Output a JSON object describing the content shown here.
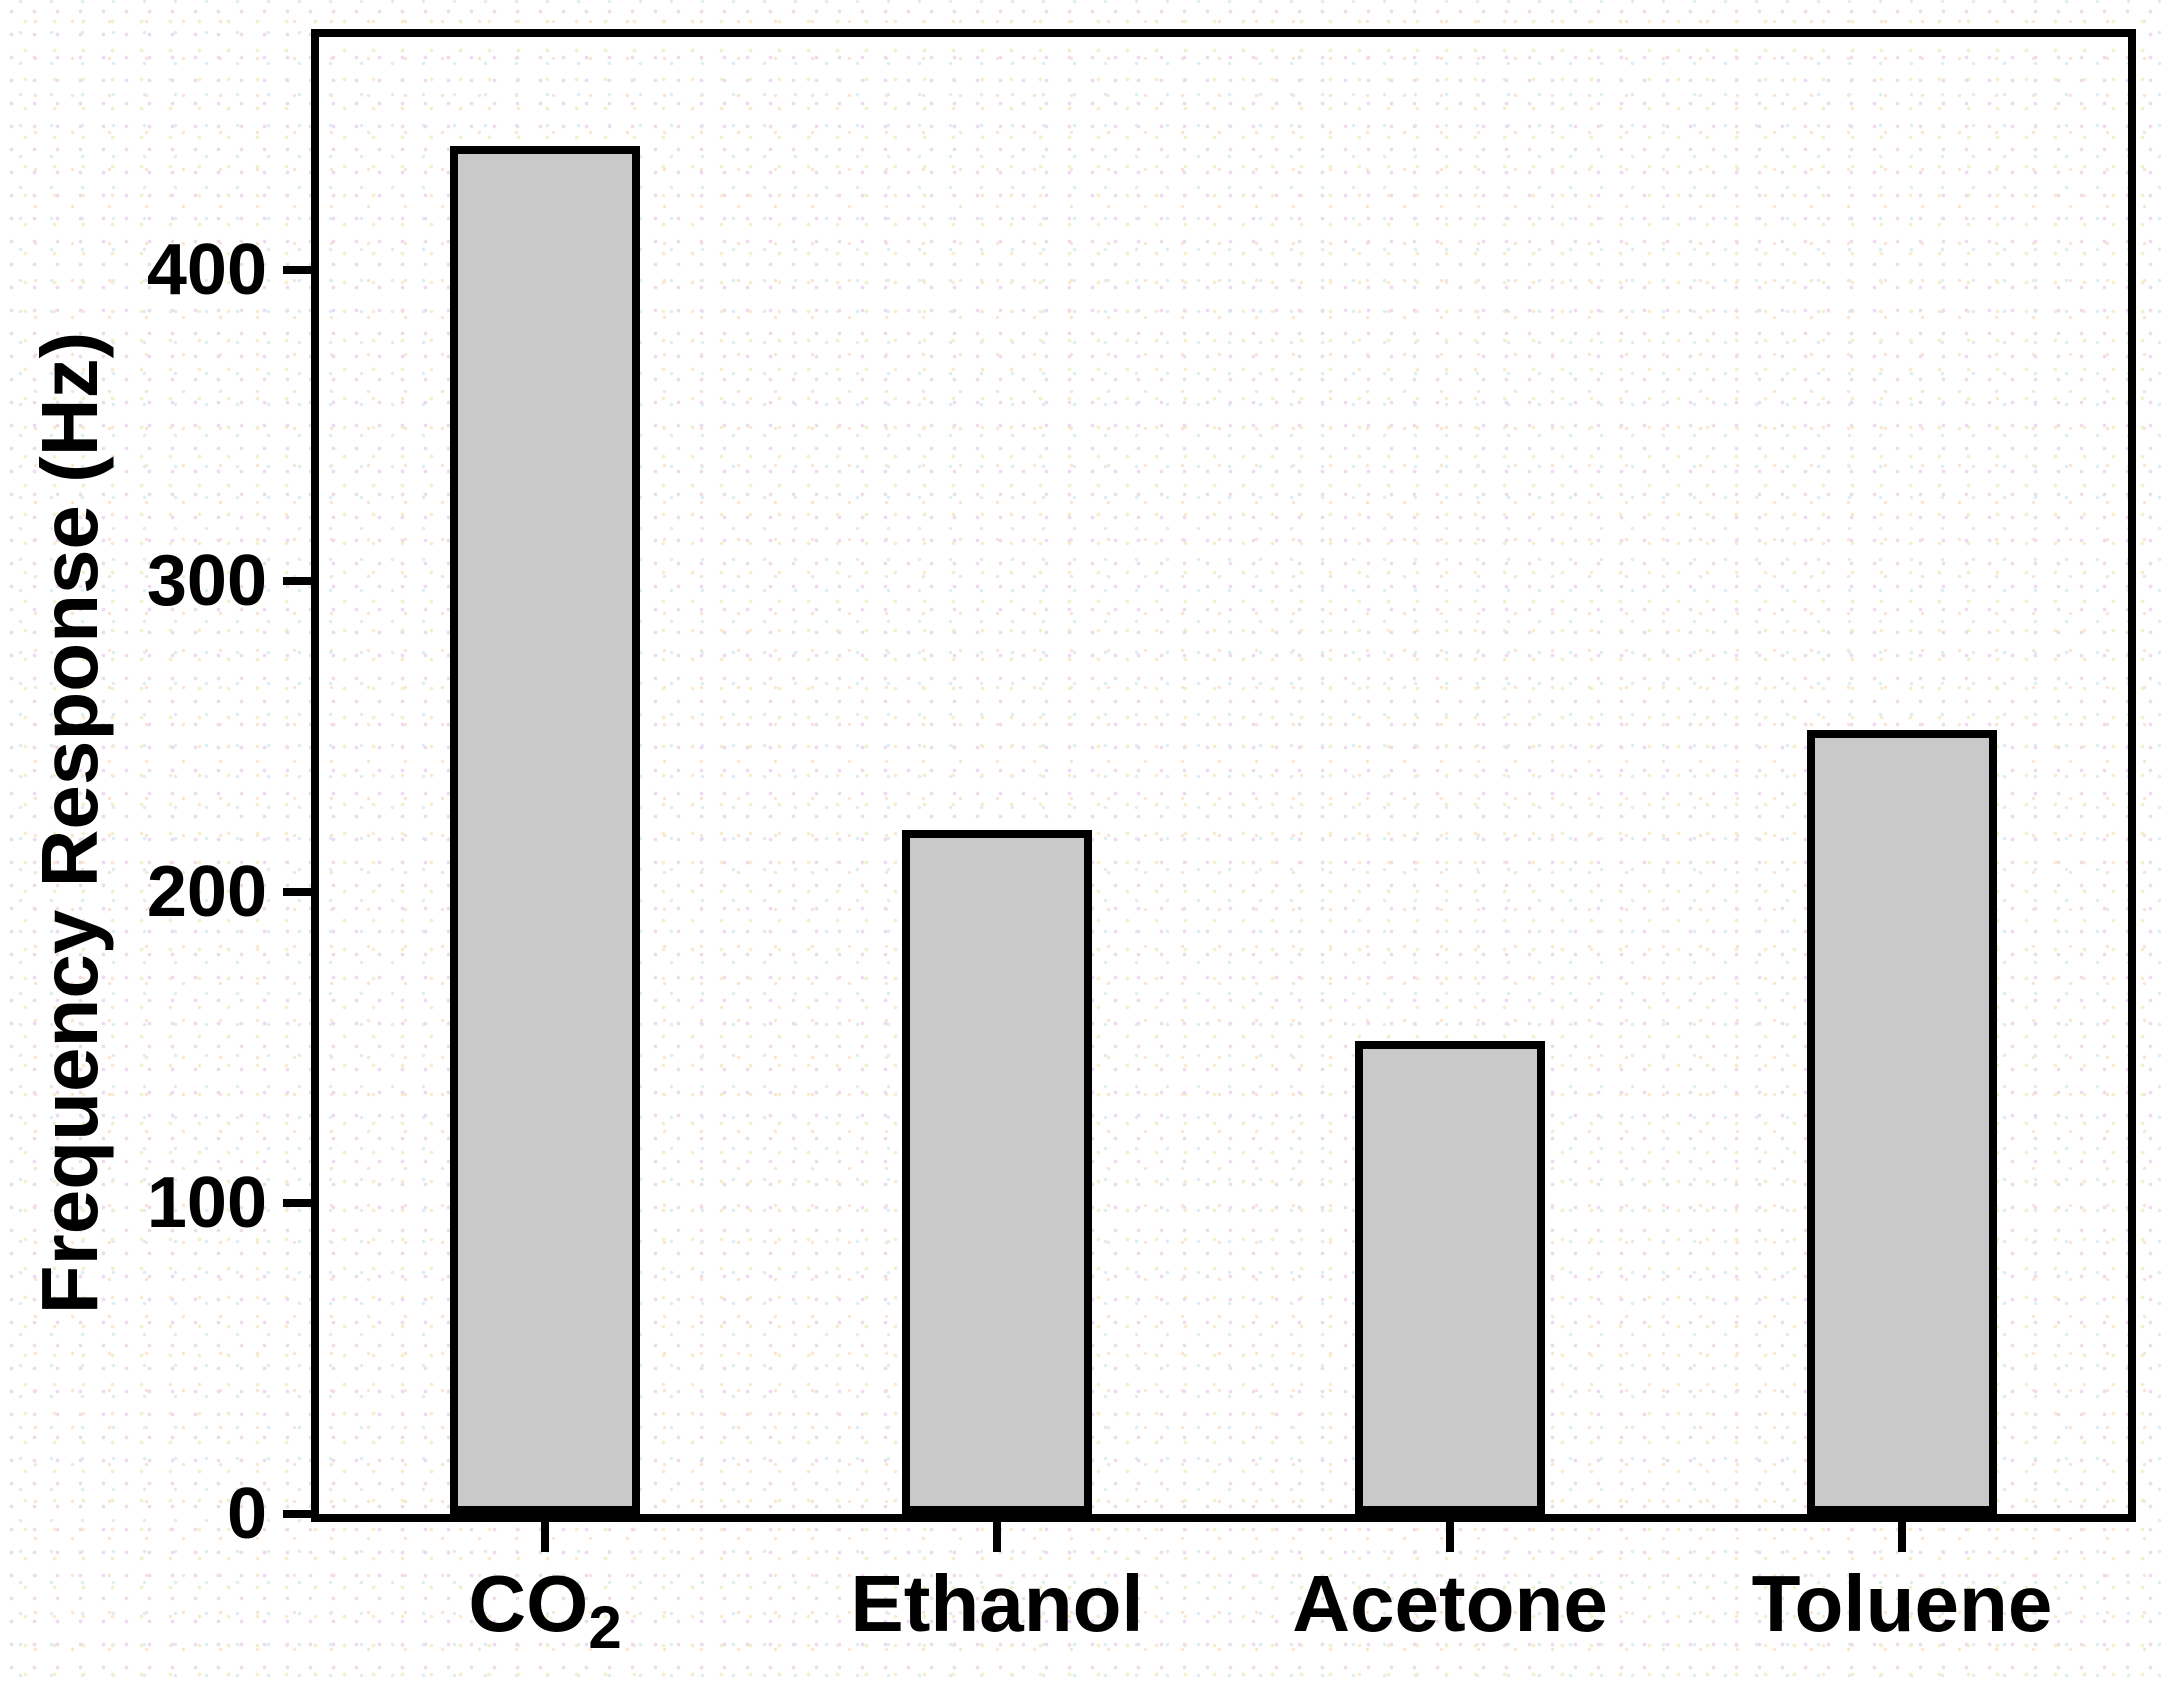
{
  "chart_data": {
    "type": "bar",
    "title": "",
    "categories": [
      "CO2",
      "Ethanol",
      "Acetone",
      "Toluene"
    ],
    "categories_display": [
      {
        "main": "CO",
        "sub": "2"
      },
      {
        "main": "Ethanol",
        "sub": ""
      },
      {
        "main": "Acetone",
        "sub": ""
      },
      {
        "main": "Toluene",
        "sub": ""
      }
    ],
    "values": [
      440,
      220,
      152,
      252
    ],
    "unit": "Hz",
    "xlabel": "",
    "ylabel": "Frequency Response (Hz)",
    "yticks": [
      0,
      100,
      200,
      300,
      400
    ],
    "ylim": [
      0,
      475
    ],
    "grid": false,
    "legend": null,
    "bar_fill_color": "#c9c9c9",
    "bar_border_color": "#000000",
    "axis_color": "#000000",
    "text_color": "#000000"
  }
}
